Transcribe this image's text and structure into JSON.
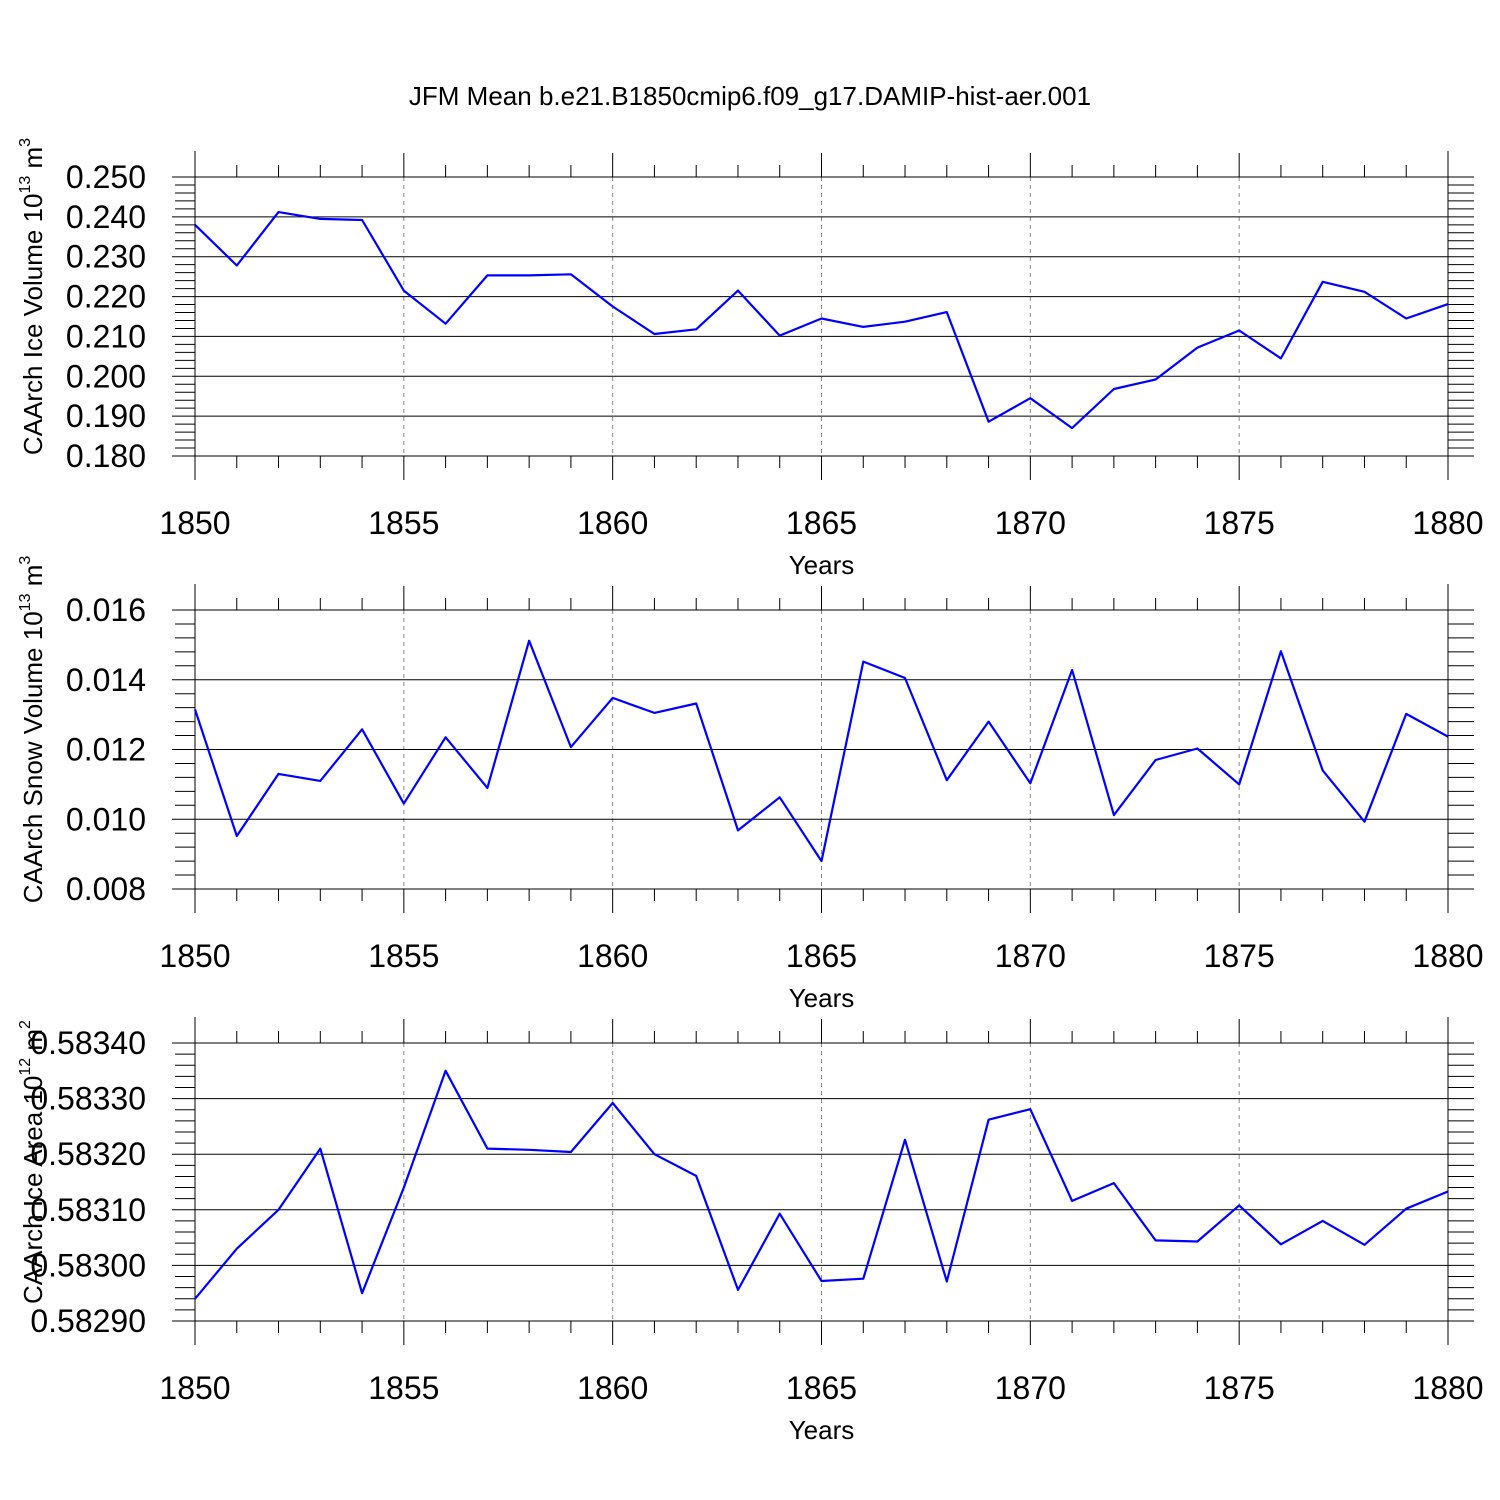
{
  "title": "JFM Mean b.e21.B1850cmip6.f09_g17.DAMIP-hist-aer.001",
  "line_color": "#0000ff",
  "grid_color": "#888888",
  "chart_data": [
    {
      "type": "line",
      "xlabel": "Years",
      "ylabel": "CAArch Ice Volume 10",
      "ylabel_exp": "13",
      "ylabel_unit": " m",
      "ylabel_unit_exp": "3",
      "xlim": [
        1850,
        1880
      ],
      "ylim": [
        0.18,
        0.25
      ],
      "xticks": [
        1850,
        1855,
        1860,
        1865,
        1870,
        1875,
        1880
      ],
      "yticks": [
        "0.180",
        "0.190",
        "0.200",
        "0.210",
        "0.220",
        "0.230",
        "0.240",
        "0.250"
      ],
      "grid": "vertical dashed",
      "x": [
        1850,
        1851,
        1852,
        1853,
        1854,
        1855,
        1856,
        1857,
        1858,
        1859,
        1860,
        1861,
        1862,
        1863,
        1864,
        1865,
        1866,
        1867,
        1868,
        1869,
        1870,
        1871,
        1872,
        1873,
        1874,
        1875,
        1876,
        1877,
        1878,
        1879,
        1880
      ],
      "y": [
        0.238,
        0.2278,
        0.2412,
        0.2395,
        0.2392,
        0.2215,
        0.2132,
        0.2253,
        0.2253,
        0.2256,
        0.2175,
        0.2106,
        0.2118,
        0.2215,
        0.2102,
        0.2145,
        0.2124,
        0.2137,
        0.2161,
        0.1886,
        0.1945,
        0.187,
        0.1968,
        0.1992,
        0.2072,
        0.2115,
        0.2045,
        0.2237,
        0.2212,
        0.2145,
        0.2181
      ]
    },
    {
      "type": "line",
      "xlabel": "Years",
      "ylabel": "CAArch Snow Volume 10",
      "ylabel_exp": "13",
      "ylabel_unit": " m",
      "ylabel_unit_exp": "3",
      "xlim": [
        1850,
        1880
      ],
      "ylim": [
        0.008,
        0.016
      ],
      "xticks": [
        1850,
        1855,
        1860,
        1865,
        1870,
        1875,
        1880
      ],
      "yticks": [
        "0.008",
        "0.010",
        "0.012",
        "0.014",
        "0.016"
      ],
      "grid": "vertical dashed",
      "x": [
        1850,
        1851,
        1852,
        1853,
        1854,
        1855,
        1856,
        1857,
        1858,
        1859,
        1860,
        1861,
        1862,
        1863,
        1864,
        1865,
        1866,
        1867,
        1868,
        1869,
        1870,
        1871,
        1872,
        1873,
        1874,
        1875,
        1876,
        1877,
        1878,
        1879,
        1880
      ],
      "y": [
        0.01315,
        0.00952,
        0.0113,
        0.0111,
        0.01258,
        0.01045,
        0.01235,
        0.0109,
        0.01512,
        0.01207,
        0.01348,
        0.01305,
        0.01332,
        0.00968,
        0.01063,
        0.0088,
        0.01452,
        0.01405,
        0.01112,
        0.0128,
        0.01103,
        0.01428,
        0.01012,
        0.0117,
        0.01203,
        0.011,
        0.01482,
        0.0114,
        0.00993,
        0.01302,
        0.01237
      ]
    },
    {
      "type": "line",
      "xlabel": "Years",
      "ylabel": "CAArch Ice Area 10",
      "ylabel_exp": "12",
      "ylabel_unit": " m",
      "ylabel_unit_exp": "2",
      "xlim": [
        1850,
        1880
      ],
      "ylim": [
        0.5829,
        0.5834
      ],
      "xticks": [
        1850,
        1855,
        1860,
        1865,
        1870,
        1875,
        1880
      ],
      "yticks": [
        "0.58290",
        "0.58300",
        "0.58310",
        "0.58320",
        "0.58330",
        "0.58340"
      ],
      "grid": "vertical dashed",
      "x": [
        1850,
        1851,
        1852,
        1853,
        1854,
        1855,
        1856,
        1857,
        1858,
        1859,
        1860,
        1861,
        1862,
        1863,
        1864,
        1865,
        1866,
        1867,
        1868,
        1869,
        1870,
        1871,
        1872,
        1873,
        1874,
        1875,
        1876,
        1877,
        1878,
        1879,
        1880
      ],
      "y": [
        0.58294,
        0.58303,
        0.5831,
        0.58321,
        0.58295,
        0.58314,
        0.58335,
        0.58321,
        0.583208,
        0.583204,
        0.583292,
        0.5832,
        0.583161,
        0.582956,
        0.583093,
        0.582972,
        0.582976,
        0.583226,
        0.582971,
        0.583262,
        0.583281,
        0.583116,
        0.583148,
        0.583045,
        0.583043,
        0.583108,
        0.583038,
        0.58308,
        0.583037,
        0.583102,
        0.583133
      ]
    }
  ]
}
